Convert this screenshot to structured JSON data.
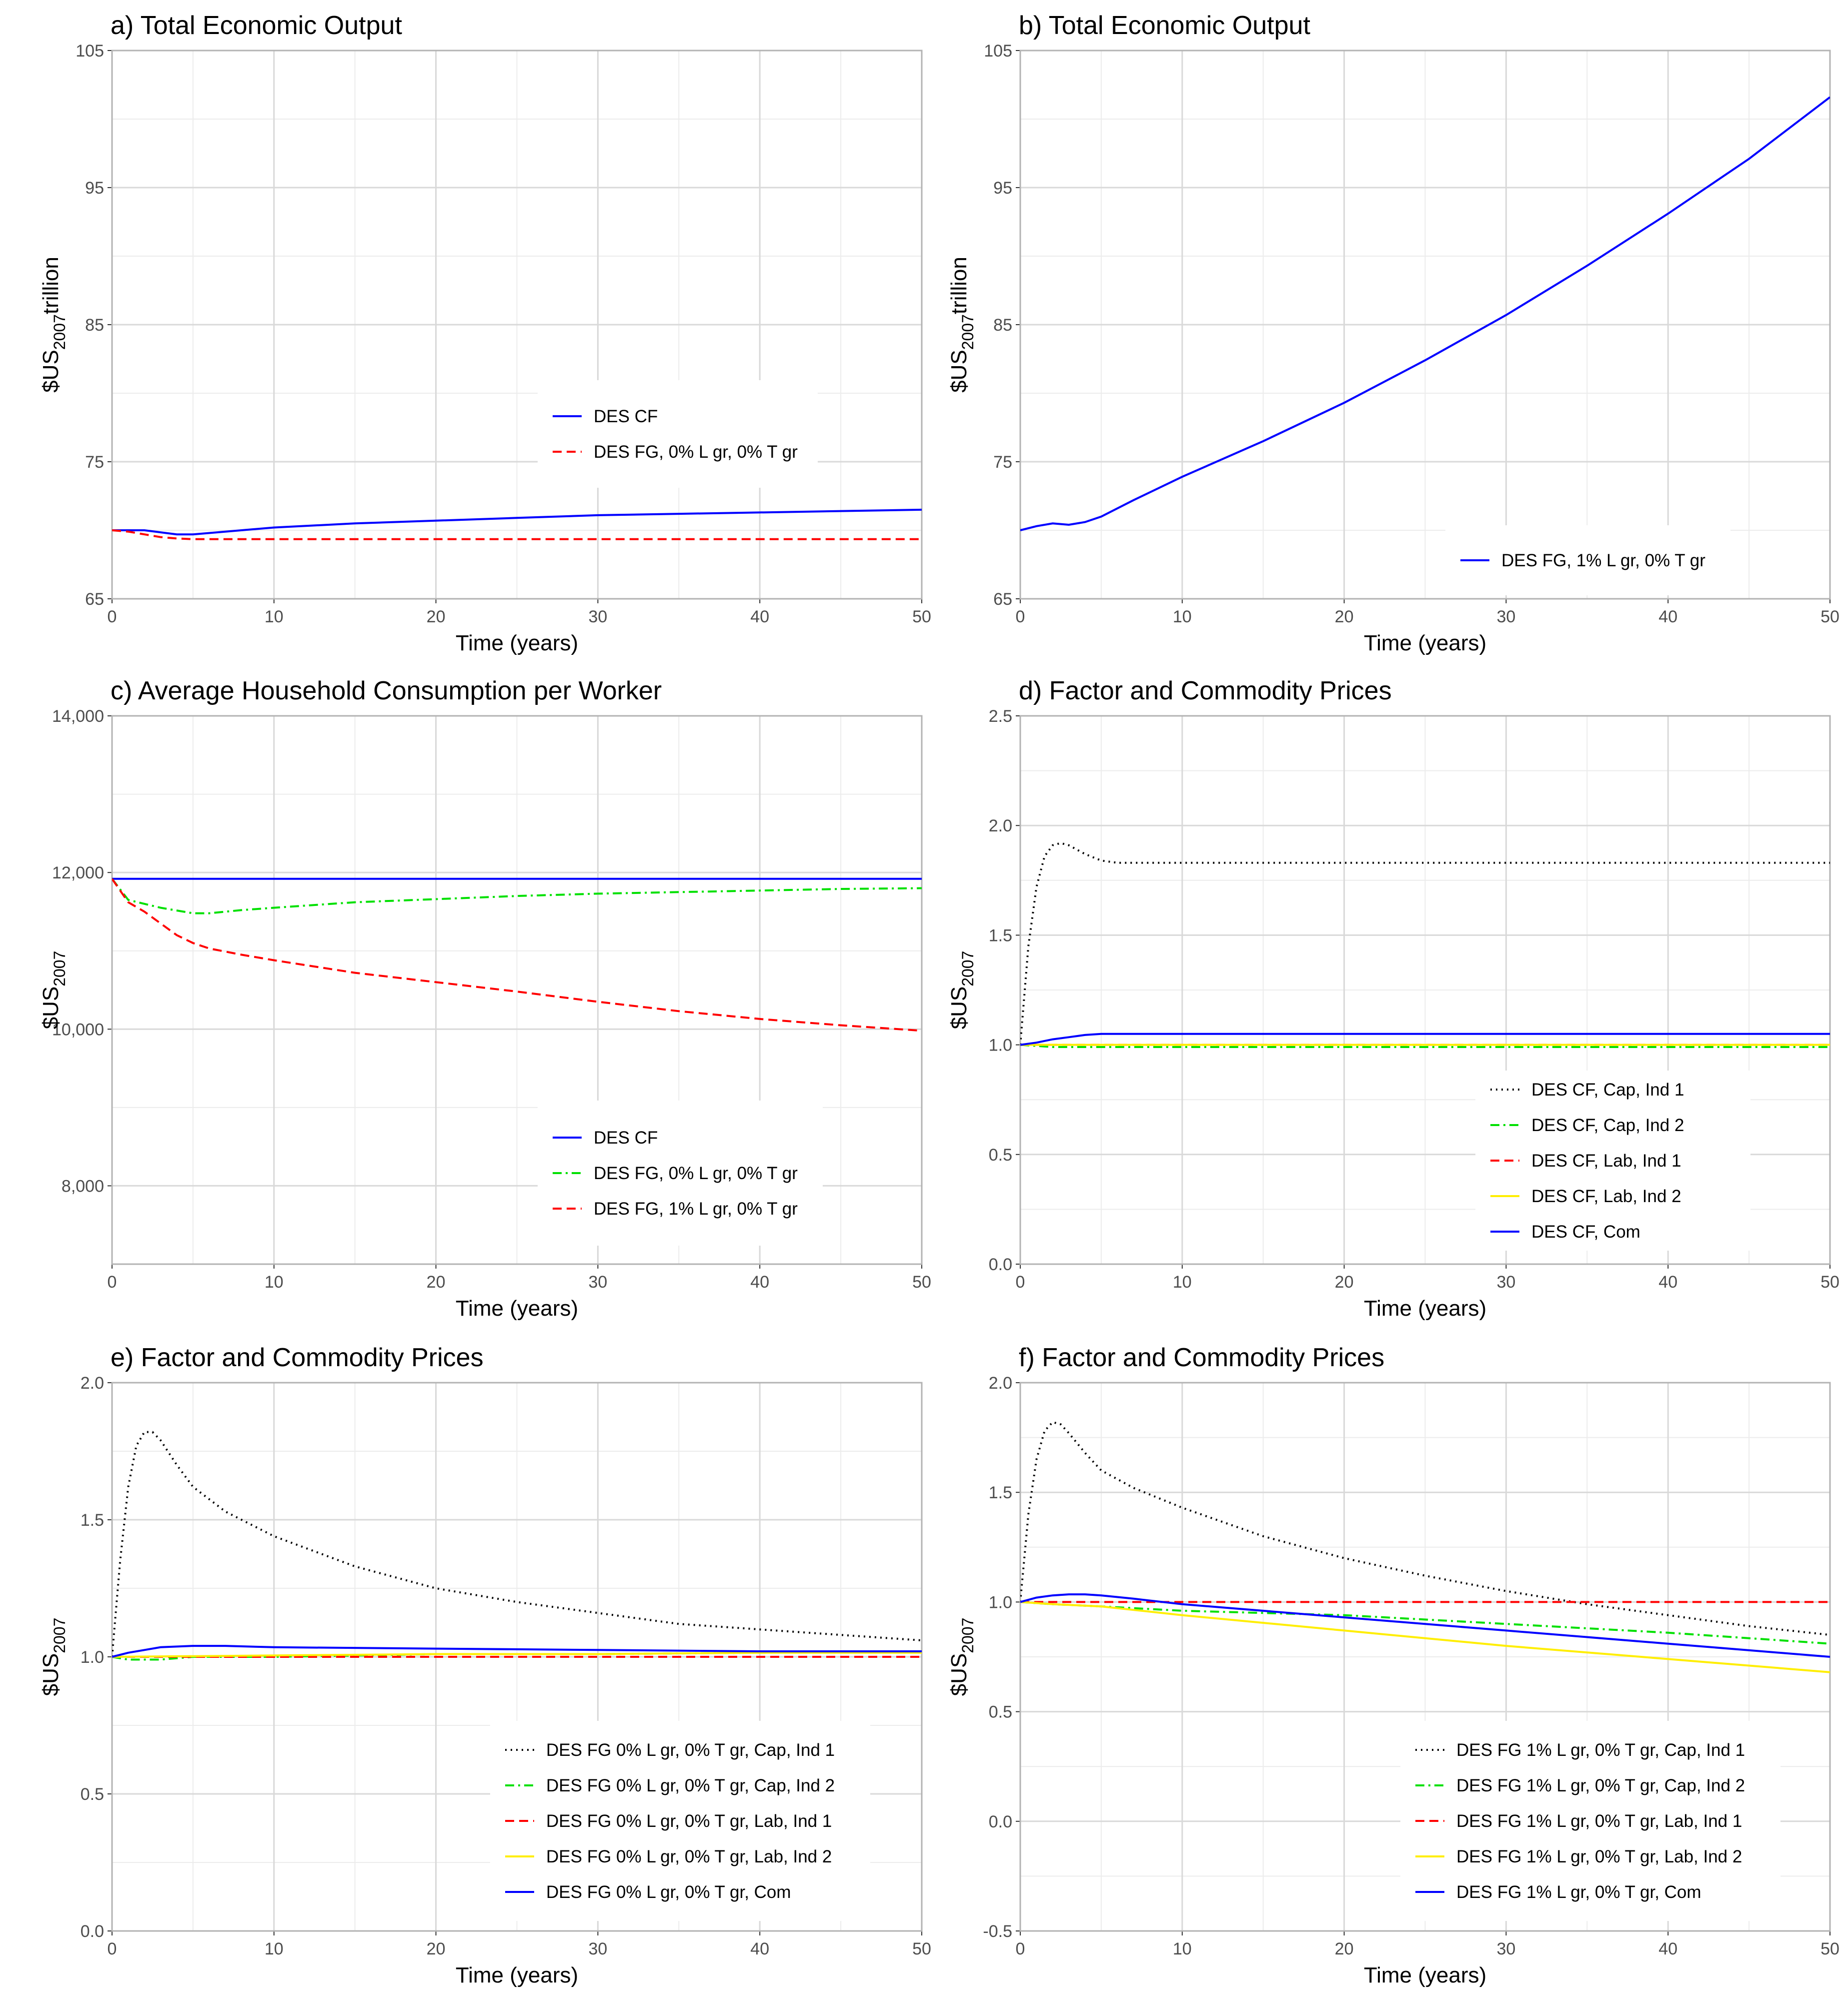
{
  "figure": {
    "panels": [
      {
        "id": "a",
        "title": "a) Total Economic Output",
        "xlabel": "Time (years)",
        "ylabel_main": "$US",
        "ylabel_sub": "2007",
        "ylabel_suffix": "trillion",
        "xlim": [
          0,
          50
        ],
        "ylim": [
          65,
          105
        ],
        "xticks": [
          0,
          10,
          20,
          30,
          40,
          50
        ],
        "yticks": [
          65,
          75,
          85,
          95,
          105
        ],
        "ytick_labels": [
          "65",
          "75",
          "85",
          "95",
          "105"
        ],
        "legend_position": "center-right",
        "series": [
          {
            "name": "DES CF",
            "color": "#0000ff",
            "style": "solid",
            "x": [
              0,
              2,
              4,
              5,
              7,
              10,
              15,
              20,
              25,
              30,
              35,
              40,
              45,
              50
            ],
            "y": [
              70.0,
              70.0,
              69.7,
              69.7,
              69.9,
              70.2,
              70.5,
              70.7,
              70.9,
              71.1,
              71.2,
              71.3,
              71.4,
              71.5
            ]
          },
          {
            "name": "DES FG, 0% L gr, 0% T gr",
            "color": "#ff0000",
            "style": "dashed",
            "x": [
              0,
              1,
              2,
              3,
              4,
              5,
              10,
              20,
              30,
              40,
              50
            ],
            "y": [
              70.0,
              69.9,
              69.7,
              69.5,
              69.4,
              69.35,
              69.35,
              69.35,
              69.35,
              69.35,
              69.35
            ]
          }
        ]
      },
      {
        "id": "b",
        "title": "b) Total Economic Output",
        "xlabel": "Time (years)",
        "ylabel_main": "$US",
        "ylabel_sub": "2007",
        "ylabel_suffix": "trillion",
        "xlim": [
          0,
          50
        ],
        "ylim": [
          65,
          105
        ],
        "xticks": [
          0,
          10,
          20,
          30,
          40,
          50
        ],
        "yticks": [
          65,
          75,
          85,
          95,
          105
        ],
        "ytick_labels": [
          "65",
          "75",
          "85",
          "95",
          "105"
        ],
        "legend_position": "bottom-right",
        "series": [
          {
            "name": "DES FG, 1% L gr, 0% T gr",
            "color": "#0000ff",
            "style": "solid",
            "x": [
              0,
              1,
              2,
              3,
              4,
              5,
              7,
              10,
              15,
              20,
              25,
              30,
              35,
              40,
              45,
              50
            ],
            "y": [
              70.0,
              70.3,
              70.5,
              70.4,
              70.6,
              71.0,
              72.2,
              73.9,
              76.5,
              79.3,
              82.4,
              85.7,
              89.3,
              93.1,
              97.1,
              101.6
            ]
          }
        ]
      },
      {
        "id": "c",
        "title": "c) Average Household Consumption per Worker",
        "xlabel": "Time (years)",
        "ylabel_main": "$US",
        "ylabel_sub": "2007",
        "ylabel_suffix": "",
        "xlim": [
          0,
          50
        ],
        "ylim": [
          7000,
          14000
        ],
        "xticks": [
          0,
          10,
          20,
          30,
          40,
          50
        ],
        "yticks": [
          8000,
          10000,
          12000,
          14000
        ],
        "ytick_labels": [
          "8,000",
          "10,000",
          "12,000",
          "14,000"
        ],
        "legend_position": "bottom-right",
        "series": [
          {
            "name": "DES CF",
            "color": "#0000ff",
            "style": "solid",
            "x": [
              0,
              50
            ],
            "y": [
              11920,
              11920
            ]
          },
          {
            "name": "DES FG, 0% L gr, 0% T gr",
            "color": "#00e000",
            "style": "dotdash",
            "x": [
              0,
              1,
              3,
              5,
              6,
              8,
              10,
              15,
              20,
              25,
              30,
              35,
              40,
              45,
              50
            ],
            "y": [
              11920,
              11650,
              11550,
              11480,
              11480,
              11520,
              11550,
              11620,
              11660,
              11700,
              11730,
              11750,
              11770,
              11790,
              11800
            ]
          },
          {
            "name": "DES FG, 1% L gr, 0% T gr",
            "color": "#ff0000",
            "style": "dashed",
            "x": [
              0,
              1,
              2,
              3,
              4,
              5,
              6,
              8,
              10,
              15,
              20,
              25,
              30,
              35,
              40,
              45,
              50
            ],
            "y": [
              11920,
              11620,
              11500,
              11350,
              11200,
              11100,
              11030,
              10950,
              10880,
              10720,
              10600,
              10480,
              10350,
              10230,
              10130,
              10050,
              9980
            ]
          }
        ]
      },
      {
        "id": "d",
        "title": "d) Factor and Commodity Prices",
        "xlabel": "Time (years)",
        "ylabel_main": "$US",
        "ylabel_sub": "2007",
        "ylabel_suffix": "",
        "xlim": [
          0,
          50
        ],
        "ylim": [
          0,
          2.5
        ],
        "xticks": [
          0,
          10,
          20,
          30,
          40,
          50
        ],
        "yticks": [
          0,
          0.5,
          1.0,
          1.5,
          2.0,
          2.5
        ],
        "ytick_labels": [
          "0.0",
          "0.5",
          "1.0",
          "1.5",
          "2.0",
          "2.5"
        ],
        "legend_position": "bottom-right",
        "series": [
          {
            "name": "DES CF, Cap, Ind 1",
            "color": "#000000",
            "style": "dotted",
            "x": [
              0,
              0.5,
              1,
              1.5,
              2,
              2.5,
              3,
              4,
              5,
              6,
              8,
              10,
              20,
              30,
              40,
              50
            ],
            "y": [
              1.0,
              1.45,
              1.72,
              1.86,
              1.91,
              1.92,
              1.91,
              1.87,
              1.84,
              1.83,
              1.83,
              1.83,
              1.83,
              1.83,
              1.83,
              1.83
            ]
          },
          {
            "name": "DES CF, Cap, Ind 2",
            "color": "#00e000",
            "style": "dotdash",
            "x": [
              0,
              2,
              5,
              10,
              50
            ],
            "y": [
              1.0,
              0.99,
              0.99,
              0.99,
              0.99
            ]
          },
          {
            "name": "DES CF, Lab, Ind 1",
            "color": "#ff0000",
            "style": "dashed",
            "x": [
              0,
              50
            ],
            "y": [
              1.0,
              1.0
            ]
          },
          {
            "name": "DES CF, Lab, Ind 2",
            "color": "#ffee00",
            "style": "solid",
            "x": [
              0,
              50
            ],
            "y": [
              1.0,
              1.0
            ]
          },
          {
            "name": "DES CF, Com",
            "color": "#0000ff",
            "style": "solid",
            "x": [
              0,
              1,
              2,
              3,
              4,
              5,
              10,
              50
            ],
            "y": [
              1.0,
              1.01,
              1.025,
              1.035,
              1.045,
              1.05,
              1.05,
              1.05
            ]
          }
        ]
      },
      {
        "id": "e",
        "title": "e) Factor and Commodity Prices",
        "xlabel": "Time (years)",
        "ylabel_main": "$US",
        "ylabel_sub": "2007",
        "ylabel_suffix": "",
        "xlim": [
          0,
          50
        ],
        "ylim": [
          0,
          2.0
        ],
        "xticks": [
          0,
          10,
          20,
          30,
          40,
          50
        ],
        "yticks": [
          0,
          0.5,
          1.0,
          1.5,
          2.0
        ],
        "ytick_labels": [
          "0.0",
          "0.5",
          "1.0",
          "1.5",
          "2.0"
        ],
        "legend_position": "bottom-right",
        "series": [
          {
            "name": "DES FG 0% L gr, 0% T gr, Cap, Ind 1",
            "color": "#000000",
            "style": "dotted",
            "x": [
              0,
              0.5,
              1,
              1.5,
              2,
              2.5,
              3,
              4,
              5,
              7,
              10,
              15,
              20,
              25,
              30,
              35,
              40,
              45,
              50
            ],
            "y": [
              1.0,
              1.35,
              1.62,
              1.77,
              1.82,
              1.82,
              1.79,
              1.7,
              1.62,
              1.53,
              1.44,
              1.33,
              1.25,
              1.2,
              1.16,
              1.12,
              1.1,
              1.08,
              1.06
            ]
          },
          {
            "name": "DES  FG 0% L gr, 0% T gr, Cap, Ind 2",
            "color": "#00e000",
            "style": "dotdash",
            "x": [
              0,
              1,
              2,
              3,
              5,
              10,
              20,
              30,
              50
            ],
            "y": [
              1.0,
              0.99,
              0.99,
              0.99,
              1.0,
              1.0,
              1.01,
              1.01,
              1.02
            ]
          },
          {
            "name": "DES  FG 0% L gr, 0% T gr, Lab, Ind 1",
            "color": "#ff0000",
            "style": "dashed",
            "x": [
              0,
              50
            ],
            "y": [
              1.0,
              1.0
            ]
          },
          {
            "name": "DES  FG 0% L gr, 0% T gr, Lab, Ind 2",
            "color": "#ffee00",
            "style": "solid",
            "x": [
              0,
              10,
              20,
              30,
              40,
              50
            ],
            "y": [
              1.0,
              1.005,
              1.01,
              1.01,
              1.015,
              1.015
            ]
          },
          {
            "name": "DES  FG 0% L gr, 0% T gr, Com",
            "color": "#0000ff",
            "style": "solid",
            "x": [
              0,
              1,
              2,
              3,
              5,
              7,
              10,
              20,
              30,
              40,
              50
            ],
            "y": [
              1.0,
              1.015,
              1.025,
              1.035,
              1.04,
              1.04,
              1.035,
              1.03,
              1.025,
              1.02,
              1.02
            ]
          }
        ]
      },
      {
        "id": "f",
        "title": "f) Factor and Commodity Prices",
        "xlabel": "Time (years)",
        "ylabel_main": "$US",
        "ylabel_sub": "2007",
        "ylabel_suffix": "",
        "xlim": [
          0,
          50
        ],
        "ylim": [
          -0.5,
          2.0
        ],
        "xticks": [
          0,
          10,
          20,
          30,
          40,
          50
        ],
        "yticks": [
          -0.5,
          0,
          0.5,
          1.0,
          1.5,
          2.0
        ],
        "ytick_labels": [
          "-0.5",
          "0.0",
          "0.5",
          "1.0",
          "1.5",
          "2.0"
        ],
        "legend_position": "bottom-right",
        "series": [
          {
            "name": "DES FG 1% L gr, 0% T gr, Cap, Ind 1",
            "color": "#000000",
            "style": "dotted",
            "x": [
              0,
              0.5,
              1,
              1.5,
              2,
              2.5,
              3,
              4,
              5,
              7,
              10,
              15,
              20,
              25,
              30,
              35,
              40,
              45,
              50
            ],
            "y": [
              1.0,
              1.4,
              1.65,
              1.78,
              1.82,
              1.81,
              1.77,
              1.68,
              1.6,
              1.52,
              1.43,
              1.3,
              1.2,
              1.12,
              1.05,
              0.99,
              0.94,
              0.89,
              0.85
            ]
          },
          {
            "name": "DES  FG 1% L gr, 0% T gr, Cap, Ind 2",
            "color": "#00e000",
            "style": "dotdash",
            "x": [
              0,
              2,
              5,
              10,
              20,
              30,
              40,
              50
            ],
            "y": [
              1.0,
              0.99,
              0.98,
              0.96,
              0.94,
              0.9,
              0.86,
              0.81
            ]
          },
          {
            "name": "DES  FG 1% L gr, 0% T gr, Lab, Ind 1",
            "color": "#ff0000",
            "style": "dashed",
            "x": [
              0,
              50
            ],
            "y": [
              1.0,
              1.0
            ]
          },
          {
            "name": "DES  FG 1% L gr, 0% T gr, Lab, Ind 2",
            "color": "#ffee00",
            "style": "solid",
            "x": [
              0,
              2,
              5,
              10,
              20,
              30,
              40,
              50
            ],
            "y": [
              1.0,
              0.99,
              0.98,
              0.94,
              0.87,
              0.8,
              0.74,
              0.68
            ]
          },
          {
            "name": "DES  FG 1% L gr, 0% T gr, Com",
            "color": "#0000ff",
            "style": "solid",
            "x": [
              0,
              1,
              2,
              3,
              4,
              5,
              7,
              10,
              20,
              30,
              40,
              50
            ],
            "y": [
              1.0,
              1.02,
              1.03,
              1.035,
              1.035,
              1.03,
              1.015,
              0.99,
              0.93,
              0.87,
              0.81,
              0.75
            ]
          }
        ]
      }
    ]
  },
  "chart_data": [
    {
      "type": "line",
      "title": "a) Total Economic Output",
      "xlabel": "Time (years)",
      "ylabel": "$US2007trillion",
      "xlim": [
        0,
        50
      ],
      "ylim": [
        65,
        105
      ],
      "series": [
        {
          "name": "DES CF"
        },
        {
          "name": "DES FG, 0% L gr, 0% T gr"
        }
      ]
    },
    {
      "type": "line",
      "title": "b) Total Economic Output",
      "xlabel": "Time (years)",
      "ylabel": "$US2007trillion",
      "xlim": [
        0,
        50
      ],
      "ylim": [
        65,
        105
      ],
      "series": [
        {
          "name": "DES FG, 1% L gr, 0% T gr"
        }
      ]
    },
    {
      "type": "line",
      "title": "c) Average Household Consumption per Worker",
      "xlabel": "Time (years)",
      "ylabel": "$US2007",
      "xlim": [
        0,
        50
      ],
      "ylim": [
        7000,
        14000
      ],
      "series": [
        {
          "name": "DES CF"
        },
        {
          "name": "DES FG, 0% L gr, 0% T gr"
        },
        {
          "name": "DES FG, 1% L gr, 0% T gr"
        }
      ]
    },
    {
      "type": "line",
      "title": "d) Factor and Commodity Prices",
      "xlabel": "Time (years)",
      "ylabel": "$US2007",
      "xlim": [
        0,
        50
      ],
      "ylim": [
        0,
        2.5
      ],
      "series": [
        {
          "name": "DES CF, Cap, Ind 1"
        },
        {
          "name": "DES CF, Cap, Ind 2"
        },
        {
          "name": "DES CF, Lab, Ind 1"
        },
        {
          "name": "DES CF, Lab, Ind 2"
        },
        {
          "name": "DES CF, Com"
        }
      ]
    },
    {
      "type": "line",
      "title": "e) Factor and Commodity Prices",
      "xlabel": "Time (years)",
      "ylabel": "$US2007",
      "xlim": [
        0,
        50
      ],
      "ylim": [
        0,
        2.0
      ],
      "series": [
        {
          "name": "DES FG 0% L gr, 0% T gr, Cap, Ind 1"
        },
        {
          "name": "DES  FG 0% L gr, 0% T gr, Cap, Ind 2"
        },
        {
          "name": "DES  FG 0% L gr, 0% T gr, Lab, Ind 1"
        },
        {
          "name": "DES  FG 0% L gr, 0% T gr, Lab, Ind 2"
        },
        {
          "name": "DES  FG 0% L gr, 0% T gr, Com"
        }
      ]
    },
    {
      "type": "line",
      "title": "f) Factor and Commodity Prices",
      "xlabel": "Time (years)",
      "ylabel": "$US2007",
      "xlim": [
        0,
        50
      ],
      "ylim": [
        -0.5,
        2.0
      ],
      "series": [
        {
          "name": "DES FG 1% L gr, 0% T gr, Cap, Ind 1"
        },
        {
          "name": "DES  FG 1% L gr, 0% T gr, Cap, Ind 2"
        },
        {
          "name": "DES  FG 1% L gr, 0% T gr, Lab, Ind 1"
        },
        {
          "name": "DES  FG 1% L gr, 0% T gr, Lab, Ind 2"
        },
        {
          "name": "DES  FG 1% L gr, 0% T gr, Com"
        }
      ]
    }
  ]
}
